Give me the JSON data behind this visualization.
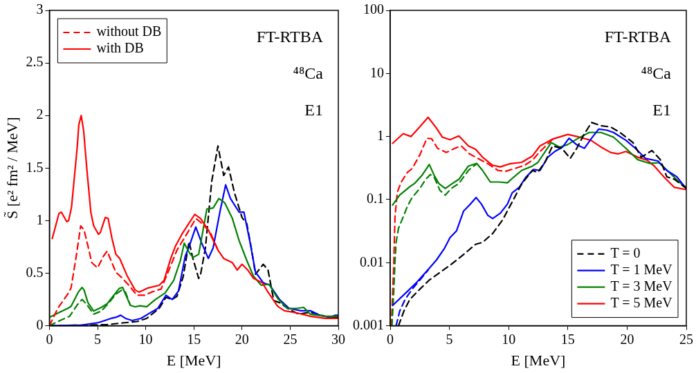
{
  "chart_data": [
    {
      "type": "line",
      "xlabel": "E [MeV]",
      "ylabel": "S̃ [e² fm² / MeV]",
      "xlim": [
        0,
        30
      ],
      "ylim": [
        0,
        3
      ],
      "xticks": [
        0,
        5,
        10,
        15,
        20,
        25,
        30
      ],
      "yticks": [
        0,
        0.5,
        1,
        1.5,
        2,
        2.5,
        3
      ],
      "legend": "top left",
      "marker": "none",
      "annotations": [
        "FT-RTBA",
        "⁴⁸Ca",
        "E1"
      ],
      "series": [
        {
          "name": "without DB",
          "color": "#ff0000",
          "line_style": "dashed",
          "x": [
            0,
            0.9,
            1.9,
            2.25,
            2.75,
            3.25,
            3.6,
            4,
            4.4,
            5,
            5.6,
            6,
            6.4,
            6.9,
            7.6,
            8.25,
            9.1,
            9.9,
            10.6,
            11.6,
            12.5,
            13.25,
            14.25,
            15.2,
            15.7,
            16.7,
            17.5
          ],
          "values": [
            0,
            0.17,
            0.3,
            0.36,
            0.64,
            0.95,
            0.91,
            0.76,
            0.6,
            0.55,
            0.66,
            0.71,
            0.62,
            0.51,
            0.45,
            0.385,
            0.29,
            0.29,
            0.32,
            0.35,
            0.55,
            0.72,
            0.87,
            1.02,
            0.985,
            0.89,
            0.72
          ]
        },
        {
          "name": "with DB",
          "color": "#ff0000",
          "line_style": "solid",
          "x": [
            0.3,
            1,
            1.25,
            1.8,
            2,
            2.3,
            2.9,
            3.05,
            3.3,
            3.55,
            3.9,
            4.3,
            4.6,
            5.1,
            5.3,
            5.8,
            6.1,
            6.5,
            6.9,
            7.3,
            8.1,
            8.9,
            9.3,
            10.25,
            11.4,
            11.9,
            12.6,
            13.1,
            13.75,
            14.6,
            15.1,
            15.7,
            16.5,
            17.5,
            18.1,
            19,
            19.5,
            20,
            20.6,
            21.2,
            22.1,
            22.7,
            23.7,
            24.4,
            25.7,
            27.1,
            28.6,
            30
          ],
          "values": [
            0.83,
            1.07,
            1.08,
            0.99,
            1.0,
            1.13,
            1.71,
            1.91,
            2.0,
            1.86,
            1.48,
            1.08,
            0.95,
            0.87,
            0.89,
            1.03,
            1.02,
            0.83,
            0.68,
            0.64,
            0.47,
            0.34,
            0.32,
            0.36,
            0.385,
            0.43,
            0.64,
            0.76,
            0.87,
            0.99,
            1.06,
            1.02,
            0.91,
            0.72,
            0.64,
            0.6,
            0.53,
            0.585,
            0.53,
            0.45,
            0.41,
            0.32,
            0.185,
            0.143,
            0.122,
            0.09,
            0.07,
            0.07
          ]
        },
        {
          "color": "#008000",
          "line_style": "solid",
          "x": [
            0,
            1.1,
            1.9,
            2.25,
            3,
            3.4,
            3.6,
            4,
            4.6,
            5.4,
            6,
            6.6,
            7.25,
            7.6,
            8.4,
            8.9,
            9.4,
            10.1,
            11,
            12,
            12.9,
            13.6,
            14,
            14.5,
            14.9,
            15.5,
            16.35,
            17,
            17.6,
            18.2,
            19,
            19.7,
            20.5,
            21.2,
            22,
            22.8,
            23.7,
            24.7,
            25.7,
            26.4,
            27.1,
            28.6,
            30
          ],
          "values": [
            0.08,
            0.13,
            0.165,
            0.185,
            0.32,
            0.365,
            0.34,
            0.22,
            0.14,
            0.175,
            0.21,
            0.28,
            0.355,
            0.365,
            0.195,
            0.18,
            0.19,
            0.18,
            0.25,
            0.31,
            0.43,
            0.62,
            0.785,
            0.7,
            0.65,
            0.68,
            1.11,
            1.12,
            1.21,
            1.17,
            1.02,
            0.81,
            0.62,
            0.47,
            0.385,
            0.395,
            0.26,
            0.165,
            0.165,
            0.175,
            0.11,
            0.09,
            0.09
          ]
        },
        {
          "color": "#008000",
          "line_style": "dashed",
          "x": [
            0,
            1.1,
            2.1,
            2.9,
            3.4,
            3.9,
            4.6,
            5.4,
            6.1,
            6.9,
            7.5,
            7.9,
            8.4
          ],
          "values": [
            0,
            0.05,
            0.09,
            0.2,
            0.25,
            0.2,
            0.11,
            0.14,
            0.21,
            0.3,
            0.34,
            0.32,
            0.195
          ]
        },
        {
          "color": "#0000ff",
          "line_style": "solid",
          "x": [
            0,
            3.4,
            5.1,
            6.4,
            6.9,
            7.4,
            7.9,
            8.6,
            9.5,
            10.4,
            11.25,
            12.1,
            12.75,
            13.4,
            14.1,
            14.5,
            15.2,
            15.8,
            16.5,
            17,
            17.7,
            18.3,
            18.8,
            19.7,
            20.2,
            20.8,
            21.4,
            22.2,
            22.9,
            23.9,
            24.9,
            26.1,
            27.1,
            28.1,
            29.1,
            29.7,
            30
          ],
          "values": [
            0,
            0.006,
            0.03,
            0.07,
            0.08,
            0.1,
            0.07,
            0.05,
            0.07,
            0.12,
            0.165,
            0.29,
            0.25,
            0.33,
            0.66,
            0.75,
            0.94,
            0.79,
            0.64,
            0.74,
            1.08,
            1.34,
            1.21,
            1.08,
            1.08,
            0.81,
            0.51,
            0.41,
            0.385,
            0.25,
            0.165,
            0.143,
            0.143,
            0.1,
            0.08,
            0.1,
            0.1
          ]
        },
        {
          "color": "#000000",
          "line_style": "dashed",
          "x": [
            0,
            5.9,
            7.6,
            9.1,
            10.1,
            11.4,
            12.1,
            12.75,
            13.25,
            13.9,
            14.5,
            14.9,
            15.5,
            15.7,
            16.2,
            16.85,
            17.5,
            18.1,
            18.6,
            19.2,
            20,
            20.5,
            21,
            21.4,
            22.2,
            22.7,
            23.3,
            23.9,
            24.9,
            25.9,
            27.1,
            28.6,
            30
          ],
          "values": [
            0,
            0.01,
            0.027,
            0.04,
            0.07,
            0.165,
            0.27,
            0.25,
            0.28,
            0.47,
            0.8,
            0.64,
            0.45,
            0.49,
            0.74,
            1.37,
            1.71,
            1.43,
            1.51,
            1.27,
            1.03,
            0.97,
            0.72,
            0.49,
            0.585,
            0.53,
            0.24,
            0.22,
            0.155,
            0.11,
            0.13,
            0.09,
            0.08
          ]
        }
      ]
    },
    {
      "type": "line",
      "xlabel": "E [MeV]",
      "xlim": [
        0,
        25
      ],
      "ylim": [
        0.001,
        100
      ],
      "xticks": [
        0,
        5,
        10,
        15,
        20,
        25
      ],
      "yticks": [
        0.001,
        0.01,
        0.1,
        1,
        10,
        100
      ],
      "log": true,
      "legend": "bottom right",
      "marker": "none",
      "annotations": [
        "FT-RTBA",
        "⁴⁸Ca",
        "E1"
      ],
      "series": [
        {
          "name": "T = 0",
          "color": "#000000",
          "line_style": "dashed",
          "x": [
            0.7,
            1.15,
            1.65,
            2.5,
            3.3,
            4.1,
            5.15,
            6.2,
            7.2,
            7.8,
            8.65,
            9.5,
            10.3,
            11.1,
            12,
            12.45,
            13.1,
            13.7,
            14.5,
            15.2,
            15.75,
            16.35,
            17,
            17.8,
            18.6,
            19.4,
            20.5,
            21.2,
            22.1,
            22.8,
            23.35,
            24,
            25
          ],
          "values": [
            0.001,
            0.0017,
            0.0026,
            0.0038,
            0.0053,
            0.0068,
            0.0094,
            0.0135,
            0.0195,
            0.021,
            0.029,
            0.048,
            0.092,
            0.177,
            0.29,
            0.27,
            0.4,
            0.71,
            0.65,
            0.45,
            0.65,
            1.07,
            1.67,
            1.48,
            1.42,
            1.16,
            0.8,
            0.47,
            0.6,
            0.43,
            0.23,
            0.21,
            0.15
          ]
        },
        {
          "name": "T = 1 MeV",
          "color": "#0000ff",
          "line_style": "solid",
          "x": [
            0.2,
            1.45,
            2.25,
            3.1,
            3.9,
            4.55,
            5.05,
            5.6,
            6.2,
            6.7,
            7.25,
            7.7,
            8.25,
            8.65,
            9.3,
            9.9,
            10.3,
            10.9,
            11.45,
            12.1,
            12.65,
            13.3,
            13.9,
            14.55,
            15.1,
            15.75,
            16.4,
            17,
            17.6,
            18.3,
            18.85,
            19.9,
            20.7,
            21.55,
            22.6,
            23.35,
            24.2,
            24.9,
            25
          ],
          "values": [
            0.0021,
            0.0035,
            0.0049,
            0.0074,
            0.011,
            0.0165,
            0.025,
            0.032,
            0.066,
            0.082,
            0.108,
            0.085,
            0.056,
            0.05,
            0.061,
            0.085,
            0.128,
            0.157,
            0.226,
            0.3,
            0.29,
            0.47,
            0.58,
            0.68,
            0.94,
            0.74,
            0.65,
            0.94,
            1.31,
            1.26,
            1.16,
            0.87,
            0.65,
            0.45,
            0.41,
            0.29,
            0.23,
            0.157,
            0.15
          ]
        },
        {
          "name": "T = 3 MeV",
          "color": "#008000",
          "line_style": "solid",
          "x": [
            0.2,
            0.8,
            1.65,
            2.05,
            2.7,
            3.3,
            3.7,
            4.1,
            4.65,
            5.25,
            5.8,
            6.6,
            7.3,
            7.8,
            8.45,
            9.2,
            9.9,
            10.4,
            11.1,
            12,
            12.45,
            13.6,
            14.3,
            14.95,
            15.75,
            16.8,
            17.8,
            18.85,
            19.9,
            20.9,
            21.9,
            22.7,
            23.55,
            24.4,
            25
          ],
          "values": [
            0.082,
            0.118,
            0.16,
            0.18,
            0.245,
            0.36,
            0.245,
            0.18,
            0.15,
            0.18,
            0.21,
            0.34,
            0.375,
            0.29,
            0.19,
            0.19,
            0.185,
            0.225,
            0.29,
            0.34,
            0.385,
            0.8,
            0.68,
            0.74,
            0.91,
            1.16,
            1.16,
            0.98,
            0.65,
            0.43,
            0.375,
            0.385,
            0.27,
            0.19,
            0.157
          ]
        },
        {
          "name": "T = 5 MeV",
          "color": "#ff0000",
          "line_style": "solid",
          "x": [
            0.2,
            1.1,
            1.75,
            2.4,
            3.2,
            3.9,
            4.4,
            5.05,
            5.8,
            6.6,
            7.2,
            7.8,
            8.65,
            9.3,
            10.1,
            11.1,
            12,
            12.65,
            13.7,
            15,
            15.95,
            16.95,
            17.8,
            18.6,
            19.25,
            19.9,
            20.9,
            21.7,
            22.3,
            23.1,
            23.97,
            24.9,
            25
          ],
          "values": [
            0.78,
            1.11,
            1.0,
            1.36,
            2.02,
            1.36,
            0.98,
            0.89,
            1.02,
            0.71,
            0.63,
            0.47,
            0.35,
            0.33,
            0.37,
            0.39,
            0.49,
            0.71,
            0.91,
            1.08,
            0.98,
            0.87,
            0.68,
            0.56,
            0.53,
            0.58,
            0.47,
            0.42,
            0.34,
            0.23,
            0.157,
            0.145,
            0.145
          ]
        },
        {
          "color": "#0000ff",
          "line_style": "dashed",
          "x": [
            0.5,
            0.8,
            1.25,
            1.85,
            2.5,
            3.2
          ],
          "values": [
            0.001,
            0.0017,
            0.0026,
            0.0038,
            0.0053,
            0.0076
          ]
        },
        {
          "color": "#008000",
          "line_style": "dashed",
          "x": [
            0.15,
            0.3,
            0.4,
            0.5,
            0.7,
            1.0,
            1.45,
            1.85,
            2.5,
            3,
            3.4,
            3.7,
            4.2,
            4.65,
            5.15,
            5.8,
            6.6,
            7.3
          ],
          "values": [
            0.001,
            0.0035,
            0.01,
            0.021,
            0.035,
            0.048,
            0.078,
            0.108,
            0.15,
            0.21,
            0.25,
            0.23,
            0.14,
            0.118,
            0.15,
            0.18,
            0.29,
            0.37
          ]
        },
        {
          "color": "#ff0000",
          "line_style": "dashed",
          "x": [
            0.1,
            0.3,
            0.4,
            0.6,
            0.9,
            1.45,
            1.85,
            2.5,
            3.1,
            3.5,
            4,
            4.75,
            5.45,
            6,
            6.7,
            7.4,
            8.25,
            9.1,
            9.7,
            10.5,
            11.35,
            12,
            12.6,
            13.7
          ],
          "values": [
            0.001,
            0.0093,
            0.052,
            0.13,
            0.185,
            0.27,
            0.31,
            0.51,
            0.94,
            0.92,
            0.65,
            0.56,
            0.65,
            0.71,
            0.53,
            0.45,
            0.37,
            0.29,
            0.28,
            0.31,
            0.35,
            0.42,
            0.565,
            0.9
          ]
        }
      ]
    }
  ]
}
